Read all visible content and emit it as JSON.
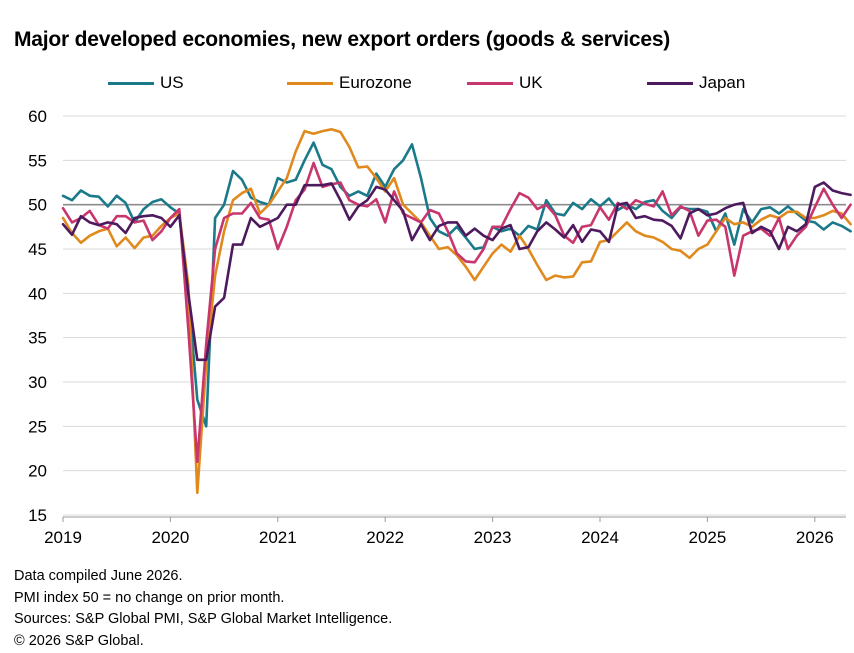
{
  "title": "Major developed economies, new export orders (goods & services)",
  "notes": [
    "Data compiled June 2026.",
    "PMI index 50 = no change on prior month.",
    "Sources: S&P Global PMI, S&P Global Market Intelligence.",
    "© 2026 S&P Global."
  ],
  "chart_data": {
    "type": "line",
    "title": "Major developed economies, new export orders (goods & services)",
    "xlabel": "",
    "ylabel": "",
    "ylim": [
      15,
      60
    ],
    "yticks": [
      15,
      20,
      25,
      30,
      35,
      40,
      45,
      50,
      55,
      60
    ],
    "xticks": [
      "2019",
      "2020",
      "2021",
      "2022",
      "2023",
      "2024",
      "2025",
      "2026"
    ],
    "xrange": [
      "2019-01",
      "2026-05"
    ],
    "reference_line": 50,
    "grid": "horizontal",
    "legend": "top",
    "months": [
      "2019-01",
      "2019-02",
      "2019-03",
      "2019-04",
      "2019-05",
      "2019-06",
      "2019-07",
      "2019-08",
      "2019-09",
      "2019-10",
      "2019-11",
      "2019-12",
      "2020-01",
      "2020-02",
      "2020-03",
      "2020-04",
      "2020-05",
      "2020-06",
      "2020-07",
      "2020-08",
      "2020-09",
      "2020-10",
      "2020-11",
      "2020-12",
      "2021-01",
      "2021-02",
      "2021-03",
      "2021-04",
      "2021-05",
      "2021-06",
      "2021-07",
      "2021-08",
      "2021-09",
      "2021-10",
      "2021-11",
      "2021-12",
      "2022-01",
      "2022-02",
      "2022-03",
      "2022-04",
      "2022-05",
      "2022-06",
      "2022-07",
      "2022-08",
      "2022-09",
      "2022-10",
      "2022-11",
      "2022-12",
      "2023-01",
      "2023-02",
      "2023-03",
      "2023-04",
      "2023-05",
      "2023-06",
      "2023-07",
      "2023-08",
      "2023-09",
      "2023-10",
      "2023-11",
      "2023-12",
      "2024-01",
      "2024-02",
      "2024-03",
      "2024-04",
      "2024-05",
      "2024-06",
      "2024-07",
      "2024-08",
      "2024-09",
      "2024-10",
      "2024-11",
      "2024-12",
      "2025-01",
      "2025-02",
      "2025-03",
      "2025-04",
      "2025-05",
      "2025-06",
      "2025-07",
      "2025-08",
      "2025-09",
      "2025-10",
      "2025-11",
      "2025-12",
      "2026-01",
      "2026-02",
      "2026-03",
      "2026-04",
      "2026-05"
    ],
    "series": [
      {
        "name": "US",
        "color": "#1a7a8a",
        "values": [
          51,
          50.5,
          51.6,
          51,
          50.9,
          49.8,
          51,
          50.2,
          48,
          49.5,
          50.3,
          50.6,
          49.7,
          49,
          40,
          28,
          25,
          48.5,
          50,
          53.8,
          52.8,
          50.8,
          50.3,
          50,
          53,
          52.5,
          52.8,
          55,
          57,
          54.5,
          54,
          52,
          51,
          51.5,
          51,
          53.5,
          52,
          54,
          55,
          56.8,
          53,
          48.5,
          47,
          46.5,
          47.5,
          46.3,
          45,
          45.2,
          47.5,
          47,
          47.3,
          46.5,
          47.6,
          47.2,
          50.5,
          49,
          48.8,
          50.2,
          49.5,
          50.6,
          49.8,
          50.7,
          49.4,
          50,
          49.5,
          50.3,
          50.5,
          49.3,
          48.5,
          49.7,
          49.5,
          49.5,
          49.2,
          47,
          49,
          45.5,
          49.5,
          48,
          49.5,
          49.7,
          49,
          49.8,
          49,
          48.2,
          48,
          47.2,
          48,
          47.6,
          47
        ]
      },
      {
        "name": "Eurozone",
        "color": "#e08a1e",
        "values": [
          48.5,
          46.8,
          45.7,
          46.5,
          47,
          47.3,
          45.3,
          46.3,
          45.1,
          46.3,
          46.5,
          47.6,
          48.5,
          49,
          41,
          17.5,
          32,
          42,
          47,
          50.5,
          51.3,
          51.8,
          49,
          50,
          51.5,
          53,
          56,
          58.3,
          58,
          58.3,
          58.5,
          58.2,
          56.5,
          54.2,
          54.3,
          53,
          51.5,
          53,
          50,
          49,
          48,
          46.5,
          45,
          45.2,
          44.3,
          43,
          41.5,
          43,
          44.5,
          45.5,
          44.7,
          46.5,
          45,
          43.2,
          41.5,
          42,
          41.8,
          41.9,
          43.5,
          43.6,
          45.8,
          46,
          47,
          48,
          47,
          46.5,
          46.3,
          45.8,
          45,
          44.8,
          44,
          45,
          45.5,
          47,
          48.5,
          47.8,
          48,
          47.5,
          48.3,
          48.8,
          48.5,
          49.2,
          49.2,
          48.5,
          48.5,
          48.8,
          49.3,
          49,
          47.8
        ]
      },
      {
        "name": "UK",
        "color": "#c8366e",
        "values": [
          49.6,
          48,
          48.5,
          49.3,
          47.7,
          47.3,
          48.7,
          48.7,
          48,
          48.2,
          46,
          47,
          48.5,
          49.5,
          36,
          21,
          34.3,
          45,
          48.5,
          49,
          49,
          50.2,
          48.5,
          48.3,
          45,
          47.5,
          50.5,
          51.7,
          54.7,
          52,
          52.3,
          52.5,
          50.5,
          50,
          49.8,
          50.6,
          48,
          51.5,
          49,
          48.5,
          48,
          49.4,
          49,
          47,
          44.5,
          43.6,
          43.5,
          45,
          47.5,
          47.5,
          49.5,
          51.3,
          50.8,
          49.5,
          50,
          48.8,
          46.5,
          45.7,
          47.5,
          47.7,
          49.7,
          48.3,
          50.2,
          49.5,
          50.5,
          50.1,
          49.8,
          51.5,
          48.8,
          49.8,
          49.3,
          46.5,
          48.2,
          48.3,
          47.5,
          42,
          46.5,
          47,
          47.3,
          46.5,
          48.5,
          45,
          46.5,
          47.5,
          49.7,
          51.8,
          50,
          48.5,
          50
        ]
      },
      {
        "name": "Japan",
        "color": "#4e1a5e",
        "values": [
          47.8,
          46.6,
          48.7,
          48,
          47.7,
          48,
          47.8,
          46.8,
          48.5,
          48.7,
          48.8,
          48.5,
          47.5,
          48.8,
          40,
          32.5,
          32.5,
          38.5,
          39.5,
          45.5,
          45.5,
          48.5,
          47.5,
          48,
          48.5,
          50,
          50,
          52.2,
          52.2,
          52.2,
          52.4,
          50.5,
          48.3,
          49.8,
          50.5,
          52,
          51.7,
          50.5,
          49.3,
          46,
          47.8,
          46,
          47.6,
          48,
          48,
          46.5,
          47.3,
          46.5,
          46,
          47.3,
          47.7,
          45,
          45.2,
          47,
          48,
          47.2,
          46.3,
          47.7,
          45.8,
          47.2,
          47,
          45.8,
          50,
          50.2,
          48.5,
          48.7,
          48.3,
          48.2,
          47.6,
          46.2,
          49,
          49.5,
          48.8,
          49,
          49.6,
          50,
          50.2,
          46.8,
          47.5,
          47,
          45,
          47.5,
          47,
          47.8,
          52,
          52.5,
          51.6,
          51.3,
          51.1
        ]
      }
    ]
  }
}
